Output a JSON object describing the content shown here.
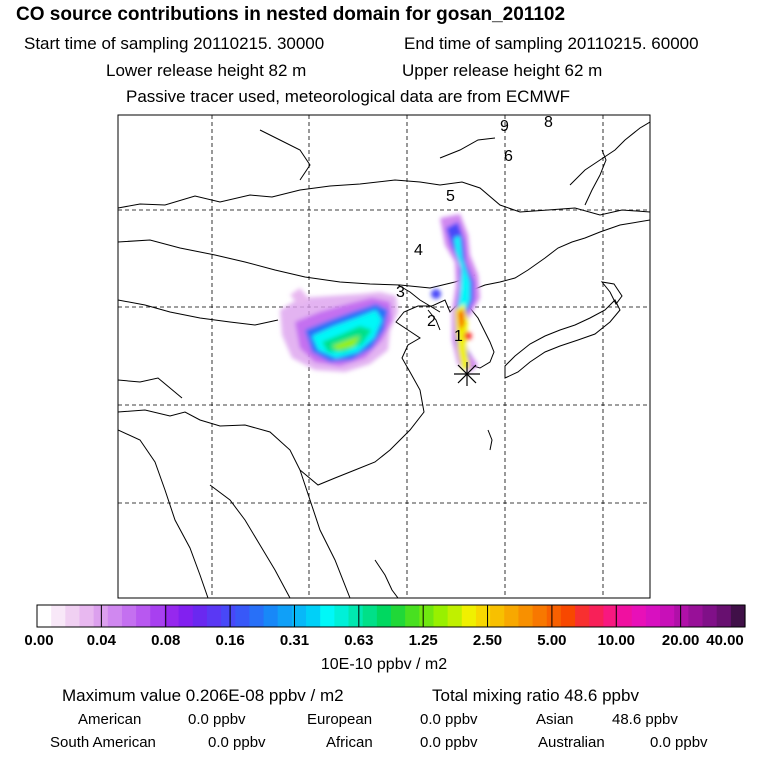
{
  "header": {
    "title": "CO  source contributions in nested domain for gosan_201102",
    "start_time": "Start time of sampling 20110215. 30000",
    "end_time": "End time of sampling 20110215. 60000",
    "lower_height": "Lower release height   82 m",
    "upper_height": "Upper release height   62 m",
    "tracer_note": "Passive tracer used, meteorological data are from ECMWF"
  },
  "map": {
    "trajectory_markers": [
      "1",
      "2",
      "3",
      "4",
      "5",
      "6",
      "8",
      "9"
    ],
    "receptor_symbol": "star-marker-icon",
    "colors": {
      "frame": "#000000",
      "coast": "#000000",
      "grid": "#000000"
    }
  },
  "colorbar": {
    "tick_labels": [
      "0.00",
      "0.04",
      "0.08",
      "0.16",
      "0.31",
      "0.63",
      "1.25",
      "2.50",
      "5.00",
      "10.00",
      "20.00",
      "40.00"
    ],
    "colors": [
      "#ffffff",
      "#f8e8f8",
      "#f0d0f2",
      "#e8b8f0",
      "#dca0ee",
      "#d088f0",
      "#c470f0",
      "#b858f0",
      "#a840f0",
      "#9628ee",
      "#8220f0",
      "#6a28f0",
      "#5a38f4",
      "#4848f8",
      "#3858f8",
      "#2870f8",
      "#1888f8",
      "#10a0f8",
      "#08b8f8",
      "#00d0f8",
      "#00f8f8",
      "#00f0d8",
      "#00e8b0",
      "#00e088",
      "#00d860",
      "#20d838",
      "#48e020",
      "#70e810",
      "#98f000",
      "#c0f000",
      "#f0f000",
      "#f8d800",
      "#f8c000",
      "#f8a800",
      "#f89000",
      "#f87800",
      "#f86000",
      "#f84800",
      "#f83030",
      "#f82058",
      "#f81880",
      "#f010a0",
      "#e810b8",
      "#d810c0",
      "#c810b8",
      "#b010a8",
      "#981098",
      "#801088",
      "#681070",
      "#401048"
    ],
    "units": "10E-10 ppbv / m2"
  },
  "footer": {
    "maximum": "Maximum value  0.206E-08 ppbv / m2",
    "total": "Total mixing ratio       48.6 ppbv",
    "american_label": "American",
    "american_value": "0.0 ppbv",
    "european_label": "European",
    "european_value": "0.0 ppbv",
    "asian_label": "Asian",
    "asian_value": "48.6 ppbv",
    "south_american_label": "South American",
    "south_american_value": "0.0 ppbv",
    "african_label": "African",
    "african_value": "0.0 ppbv",
    "australian_label": "Australian",
    "australian_value": "0.0 ppbv"
  }
}
